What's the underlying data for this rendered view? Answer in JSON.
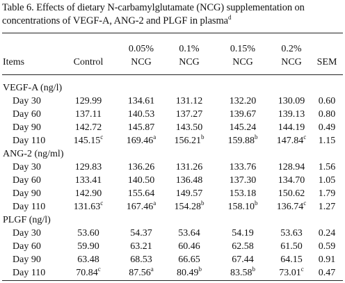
{
  "caption": {
    "text": "Table 6.  Effects of dietary N-carbamylglutamate (NCG) supplementation on concentrations of VEGF-A, ANG-2 and PLGF in plasma",
    "sup": "d"
  },
  "columns": [
    {
      "label": "Items"
    },
    {
      "label": "Control"
    },
    {
      "top": "0.05%",
      "label": "NCG"
    },
    {
      "top": "0.1%",
      "label": "NCG"
    },
    {
      "top": "0.15%",
      "label": "NCG"
    },
    {
      "top": "0.2%",
      "label": "NCG"
    },
    {
      "label": "SEM"
    }
  ],
  "sections": [
    {
      "name": "VEGF-A (ng/l)",
      "rows": [
        {
          "label": "Day 30",
          "cells": [
            "129.99",
            "134.61",
            "131.12",
            "132.20",
            "130.09",
            "0.60"
          ]
        },
        {
          "label": "Day 60",
          "cells": [
            "137.11",
            "140.53",
            "137.27",
            "139.67",
            "139.13",
            "0.80"
          ]
        },
        {
          "label": "Day 90",
          "cells": [
            "142.72",
            "145.87",
            "143.50",
            "145.24",
            "144.19",
            "0.49"
          ]
        },
        {
          "label": "Day 110",
          "cells": [
            {
              "v": "145.15",
              "sup": "c"
            },
            {
              "v": "169.46",
              "sup": "a"
            },
            {
              "v": "156.21",
              "sup": "b"
            },
            {
              "v": "159.88",
              "sup": "b"
            },
            {
              "v": "147.84",
              "sup": "c"
            },
            "1.15"
          ]
        }
      ]
    },
    {
      "name": "ANG-2 (ng/ml)",
      "rows": [
        {
          "label": "Day 30",
          "cells": [
            "129.83",
            "136.26",
            "131.26",
            "133.76",
            "128.94",
            "1.56"
          ]
        },
        {
          "label": "Day 60",
          "cells": [
            "133.41",
            "140.50",
            "136.48",
            "137.30",
            "134.70",
            "1.05"
          ]
        },
        {
          "label": "Day 90",
          "cells": [
            "142.90",
            "155.64",
            "149.57",
            "153.18",
            "150.62",
            "1.79"
          ]
        },
        {
          "label": "Day 110",
          "cells": [
            {
              "v": "131.63",
              "sup": "c"
            },
            {
              "v": "167.46",
              "sup": "a"
            },
            {
              "v": "154.28",
              "sup": "b"
            },
            {
              "v": "158.10",
              "sup": "b"
            },
            {
              "v": "136.74",
              "sup": "c"
            },
            "1.27"
          ]
        }
      ]
    },
    {
      "name": "PLGF (ng/l)",
      "rows": [
        {
          "label": "Day 30",
          "cells": [
            "53.60",
            "54.37",
            "53.64",
            "54.19",
            "53.63",
            "0.24"
          ]
        },
        {
          "label": "Day 60",
          "cells": [
            "59.90",
            "63.21",
            "60.46",
            "62.58",
            "61.50",
            "0.59"
          ]
        },
        {
          "label": "Day 90",
          "cells": [
            "63.48",
            "68.53",
            "66.65",
            "67.44",
            "64.15",
            "0.91"
          ]
        },
        {
          "label": "Day 110",
          "cells": [
            {
              "v": "70.84",
              "sup": "c"
            },
            {
              "v": "87.56",
              "sup": "a"
            },
            {
              "v": "80.49",
              "sup": "b"
            },
            {
              "v": "83.58",
              "sup": "b"
            },
            {
              "v": "73.01",
              "sup": "c"
            },
            "0.47"
          ]
        }
      ]
    }
  ]
}
